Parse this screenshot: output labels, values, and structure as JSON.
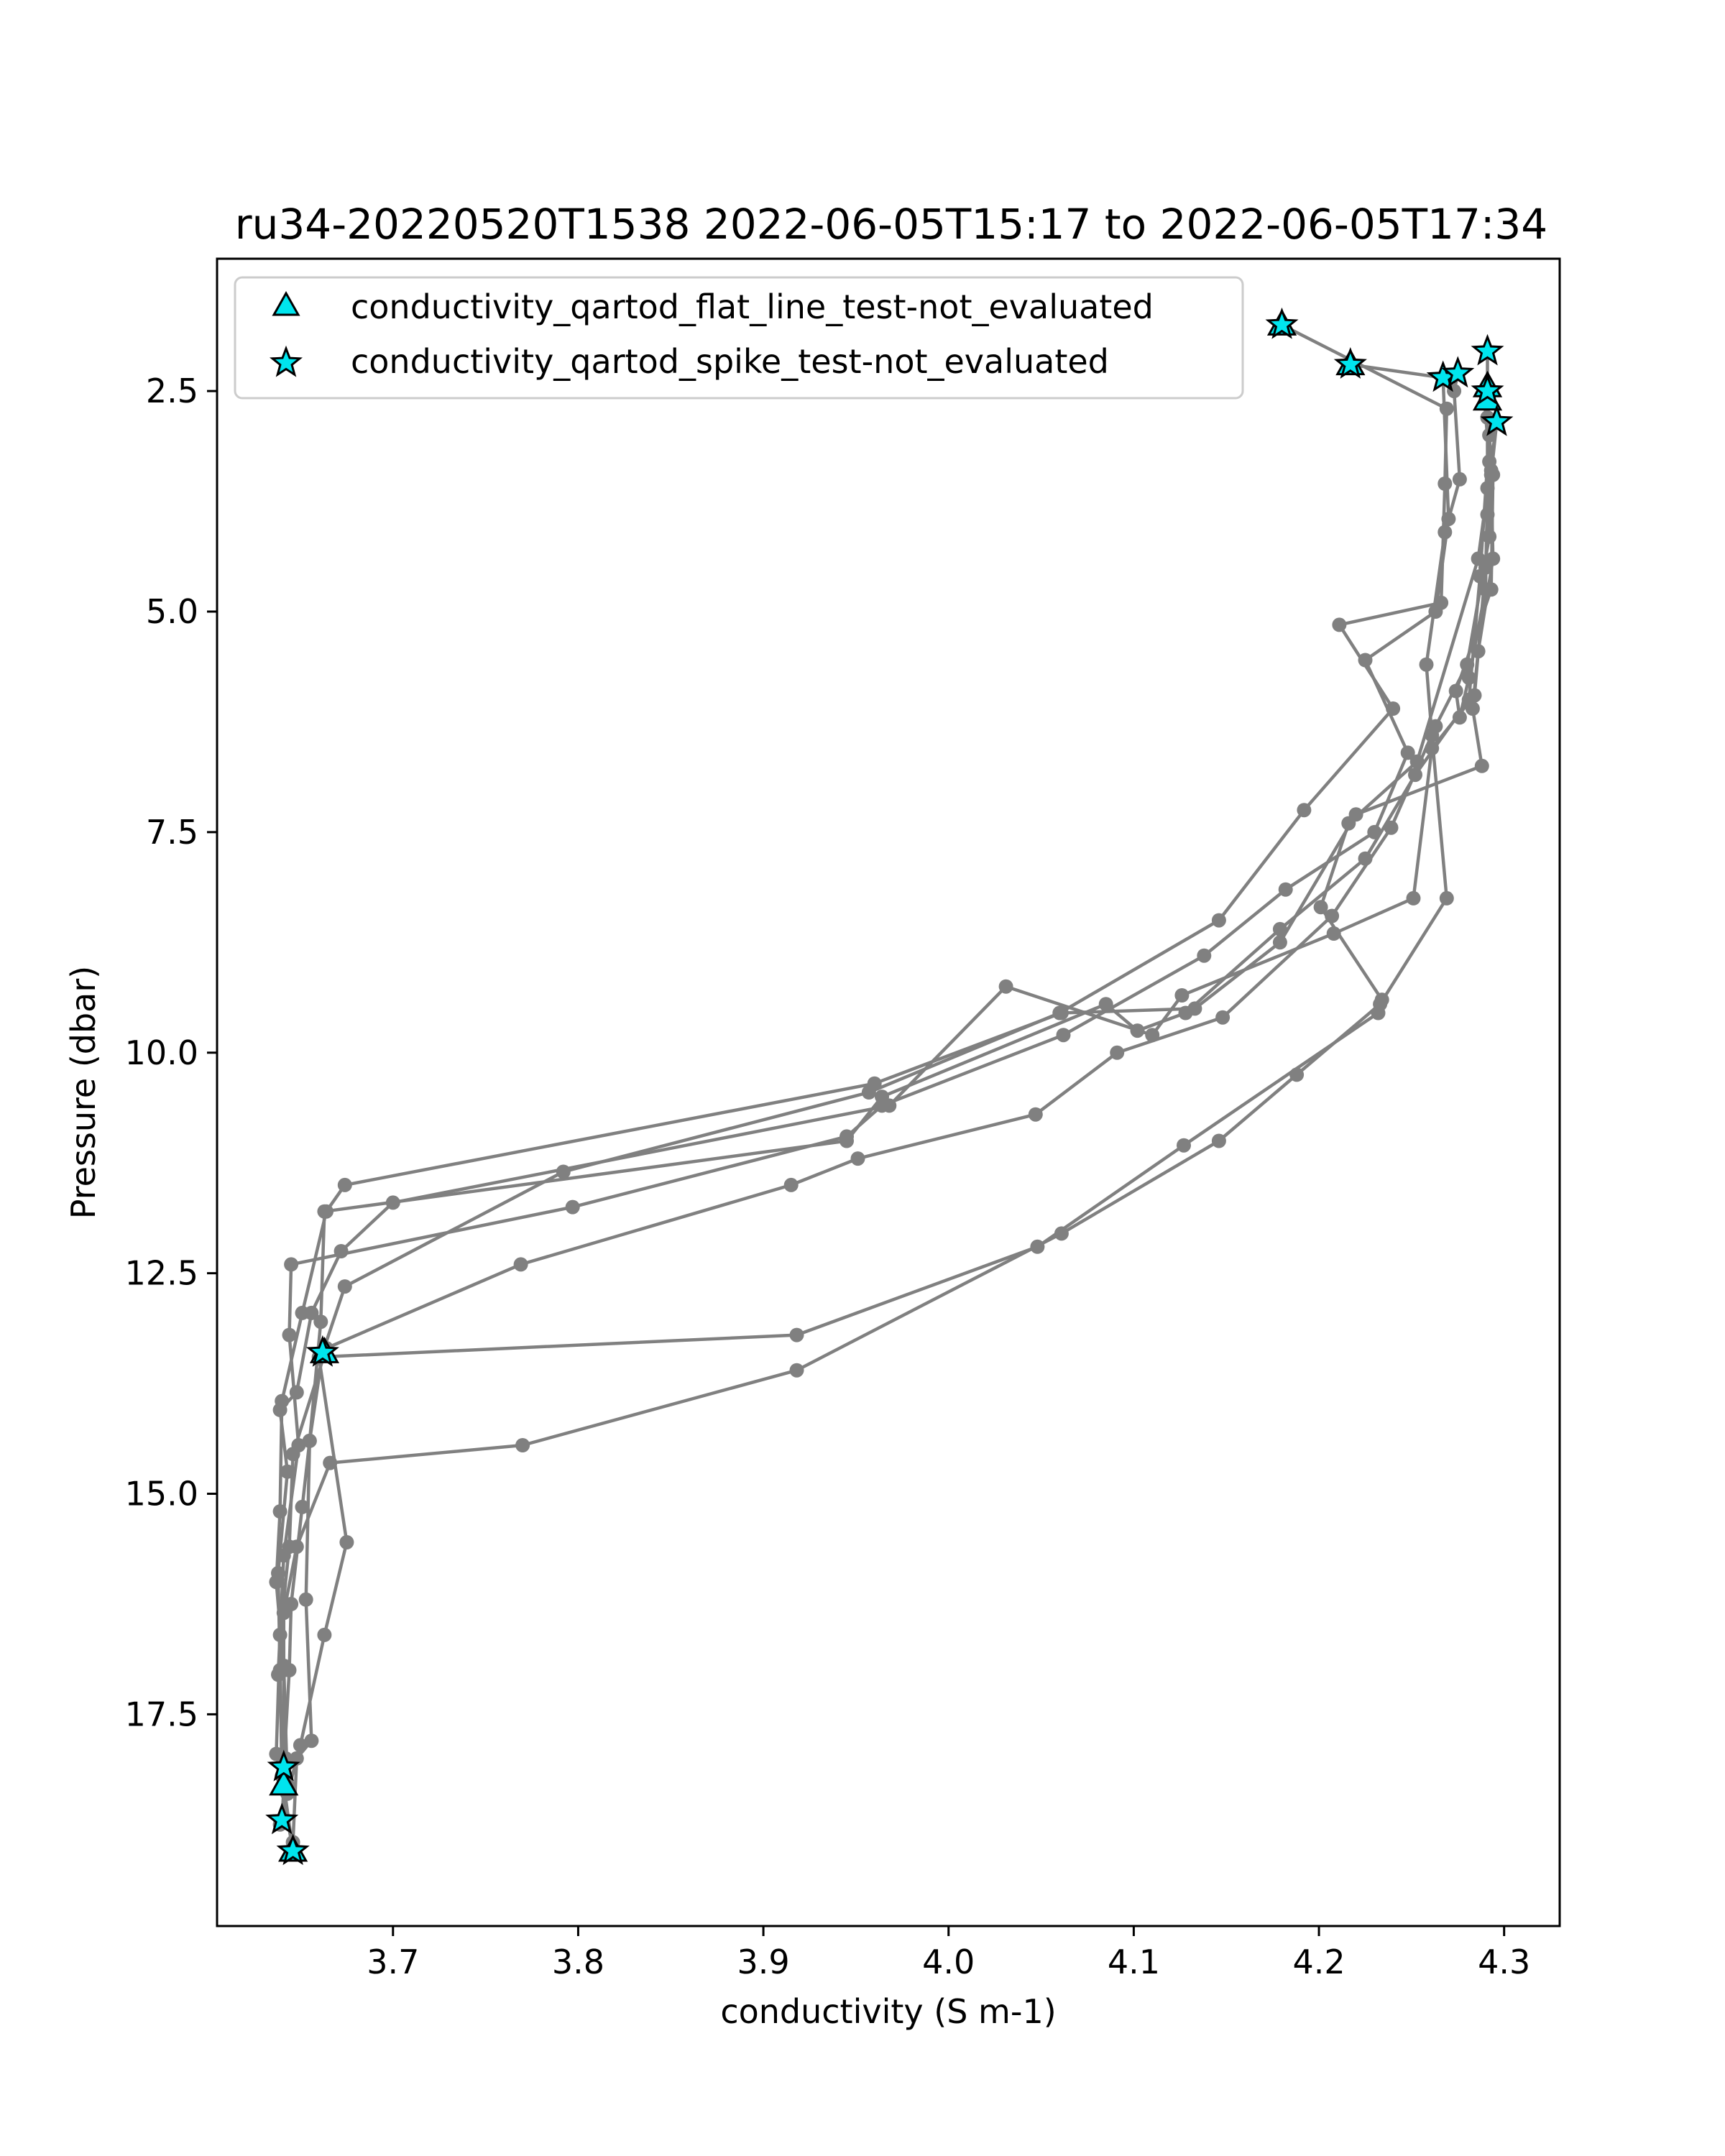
{
  "chart_data": {
    "type": "scatter",
    "title": "ru34-20220520T1538 2022-06-05T15:17 to 2022-06-05T17:34",
    "xlabel": "conductivity (S m-1)",
    "ylabel": "Pressure (dbar)",
    "xlim": [
      3.605,
      4.33
    ],
    "ylim": [
      19.9,
      1.0
    ],
    "y_inverted": true,
    "grid": false,
    "legend_position": "top-left",
    "x_ticks": [
      {
        "value": 3.7,
        "label": "3.7"
      },
      {
        "value": 3.8,
        "label": "3.8"
      },
      {
        "value": 3.9,
        "label": "3.9"
      },
      {
        "value": 4.0,
        "label": "4.0"
      },
      {
        "value": 4.1,
        "label": "4.1"
      },
      {
        "value": 4.2,
        "label": "4.2"
      },
      {
        "value": 4.3,
        "label": "4.3"
      }
    ],
    "y_ticks": [
      {
        "value": 2.5,
        "label": "2.5"
      },
      {
        "value": 5.0,
        "label": "5.0"
      },
      {
        "value": 7.5,
        "label": "7.5"
      },
      {
        "value": 10.0,
        "label": "10.0"
      },
      {
        "value": 12.5,
        "label": "12.5"
      },
      {
        "value": 15.0,
        "label": "15.0"
      },
      {
        "value": 17.5,
        "label": "17.5"
      }
    ],
    "colors": {
      "profile": "#808080",
      "flag_fill": "#00e5ee",
      "flag_edge": "#000000",
      "axes": "#000000"
    },
    "legend": [
      {
        "label": "conductivity_qartod_flat_line_test-not_evaluated",
        "marker": "triangle"
      },
      {
        "label": "conductivity_qartod_spike_test-not_evaluated",
        "marker": "star"
      }
    ],
    "profiles": [
      [
        [
          4.18,
          1.75
        ],
        [
          4.269,
          2.7
        ],
        [
          4.268,
          3.55
        ],
        [
          4.266,
          4.9
        ],
        [
          4.211,
          5.15
        ],
        [
          4.24,
          6.1
        ],
        [
          4.192,
          7.25
        ],
        [
          4.146,
          8.5
        ],
        [
          4.06,
          9.55
        ],
        [
          3.957,
          10.45
        ],
        [
          3.792,
          11.35
        ],
        [
          3.674,
          12.65
        ],
        [
          3.662,
          13.4
        ],
        [
          3.655,
          14.4
        ],
        [
          3.651,
          15.15
        ],
        [
          3.645,
          16.25
        ],
        [
          3.644,
          17.0
        ],
        [
          3.641,
          18.1
        ]
      ],
      [
        [
          4.217,
          2.2
        ],
        [
          4.267,
          2.35
        ],
        [
          4.27,
          3.95
        ],
        [
          4.263,
          5.0
        ],
        [
          4.225,
          5.55
        ],
        [
          4.248,
          6.6
        ],
        [
          4.23,
          7.5
        ],
        [
          4.182,
          8.15
        ],
        [
          4.138,
          8.9
        ],
        [
          4.062,
          9.8
        ],
        [
          3.964,
          10.6
        ],
        [
          3.945,
          10.95
        ],
        [
          3.797,
          11.75
        ],
        [
          3.645,
          12.4
        ],
        [
          3.644,
          13.2
        ],
        [
          3.649,
          14.45
        ],
        [
          3.641,
          15.7
        ],
        [
          3.638,
          17.05
        ],
        [
          3.642,
          18.0
        ],
        [
          3.64,
          18.7
        ]
      ],
      [
        [
          4.275,
          2.3
        ],
        [
          4.273,
          2.5
        ],
        [
          4.276,
          3.5
        ],
        [
          4.268,
          4.1
        ],
        [
          4.258,
          5.6
        ],
        [
          4.261,
          6.4
        ],
        [
          4.269,
          8.25
        ],
        [
          4.233,
          9.45
        ],
        [
          4.188,
          10.25
        ],
        [
          4.146,
          11.0
        ],
        [
          4.061,
          12.05
        ],
        [
          3.918,
          13.6
        ],
        [
          3.77,
          14.45
        ],
        [
          3.666,
          14.65
        ],
        [
          3.648,
          15.6
        ],
        [
          3.641,
          16.35
        ],
        [
          3.641,
          16.95
        ],
        [
          3.643,
          18.3
        ]
      ],
      [
        [
          4.291,
          2.05
        ],
        [
          4.291,
          2.6
        ],
        [
          4.293,
          3.4
        ],
        [
          4.292,
          4.15
        ],
        [
          4.28,
          5.6
        ],
        [
          4.263,
          6.3
        ],
        [
          4.239,
          7.45
        ],
        [
          4.207,
          8.45
        ],
        [
          4.148,
          9.6
        ],
        [
          4.091,
          10.0
        ],
        [
          4.047,
          10.7
        ],
        [
          3.951,
          11.2
        ],
        [
          3.915,
          11.5
        ],
        [
          3.769,
          12.4
        ],
        [
          3.664,
          13.35
        ],
        [
          3.646,
          14.55
        ],
        [
          3.644,
          15.6
        ],
        [
          3.639,
          16.6
        ],
        [
          3.637,
          17.95
        ],
        [
          3.646,
          19.05
        ]
      ],
      [
        [
          4.289,
          2.5
        ],
        [
          4.292,
          3.3
        ],
        [
          4.291,
          3.9
        ],
        [
          4.29,
          4.5
        ],
        [
          4.284,
          5.95
        ],
        [
          4.261,
          6.55
        ],
        [
          4.251,
          8.25
        ],
        [
          4.208,
          8.65
        ],
        [
          4.126,
          9.35
        ],
        [
          4.11,
          9.8
        ],
        [
          4.031,
          9.25
        ],
        [
          3.968,
          10.6
        ],
        [
          3.7,
          11.7
        ],
        [
          3.672,
          12.25
        ],
        [
          3.656,
          12.95
        ],
        [
          3.648,
          13.85
        ],
        [
          3.639,
          14.05
        ],
        [
          3.643,
          14.75
        ],
        [
          3.638,
          15.9
        ],
        [
          3.639,
          17.0
        ],
        [
          3.64,
          18.2
        ]
      ],
      [
        [
          4.296,
          2.85
        ],
        [
          4.293,
          3.45
        ],
        [
          4.294,
          4.4
        ],
        [
          4.286,
          5.45
        ],
        [
          4.283,
          6.1
        ],
        [
          4.288,
          6.75
        ],
        [
          4.22,
          7.3
        ],
        [
          4.179,
          8.75
        ],
        [
          4.133,
          9.5
        ],
        [
          4.061,
          9.55
        ],
        [
          3.96,
          10.35
        ],
        [
          3.674,
          11.5
        ],
        [
          3.664,
          11.8
        ],
        [
          3.651,
          12.95
        ],
        [
          3.64,
          13.95
        ],
        [
          3.639,
          15.2
        ],
        [
          3.637,
          16.0
        ],
        [
          3.641,
          17.0
        ],
        [
          3.641,
          18.3
        ],
        [
          3.646,
          19.05
        ]
      ],
      [
        [
          4.291,
          2.45
        ],
        [
          4.291,
          3.6
        ],
        [
          4.29,
          4.75
        ],
        [
          4.281,
          5.75
        ],
        [
          4.276,
          6.2
        ],
        [
          4.274,
          5.9
        ],
        [
          4.293,
          4.75
        ],
        [
          4.294,
          3.45
        ],
        [
          4.291,
          2.8
        ],
        [
          4.296,
          2.85
        ],
        [
          4.286,
          4.4
        ],
        [
          4.253,
          6.7
        ],
        [
          4.216,
          7.4
        ],
        [
          4.201,
          8.35
        ],
        [
          4.234,
          9.4
        ],
        [
          4.232,
          9.55
        ],
        [
          4.127,
          11.05
        ],
        [
          4.048,
          12.2
        ],
        [
          3.918,
          13.2
        ],
        [
          3.66,
          13.45
        ],
        [
          3.675,
          15.55
        ],
        [
          3.663,
          16.6
        ],
        [
          3.65,
          17.85
        ],
        [
          3.643,
          18.4
        ],
        [
          3.639,
          18.75
        ]
      ],
      [
        [
          4.291,
          2.55
        ],
        [
          4.292,
          3.0
        ],
        [
          4.287,
          4.6
        ],
        [
          4.281,
          6.0
        ],
        [
          4.252,
          6.85
        ],
        [
          4.225,
          7.8
        ],
        [
          4.179,
          8.6
        ],
        [
          4.128,
          9.55
        ],
        [
          4.102,
          9.75
        ],
        [
          4.085,
          9.45
        ],
        [
          3.964,
          10.5
        ],
        [
          3.945,
          11.0
        ],
        [
          3.663,
          11.8
        ],
        [
          3.661,
          13.05
        ],
        [
          3.655,
          14.4
        ],
        [
          3.653,
          16.2
        ],
        [
          3.656,
          17.8
        ],
        [
          3.648,
          18.0
        ],
        [
          3.646,
          18.95
        ]
      ]
    ],
    "triangle_flags": [
      [
        4.18,
        1.75
      ],
      [
        4.217,
        2.2
      ],
      [
        4.291,
        2.45
      ],
      [
        4.291,
        2.6
      ],
      [
        3.663,
        13.4
      ],
      [
        3.641,
        18.3
      ],
      [
        3.646,
        19.05
      ]
    ],
    "star_flags": [
      [
        4.18,
        1.75
      ],
      [
        4.217,
        2.2
      ],
      [
        4.267,
        2.35
      ],
      [
        4.275,
        2.3
      ],
      [
        4.291,
        2.05
      ],
      [
        4.291,
        2.5
      ],
      [
        4.296,
        2.85
      ],
      [
        3.662,
        13.4
      ],
      [
        3.641,
        18.1
      ],
      [
        3.64,
        18.7
      ],
      [
        3.646,
        19.05
      ]
    ]
  }
}
